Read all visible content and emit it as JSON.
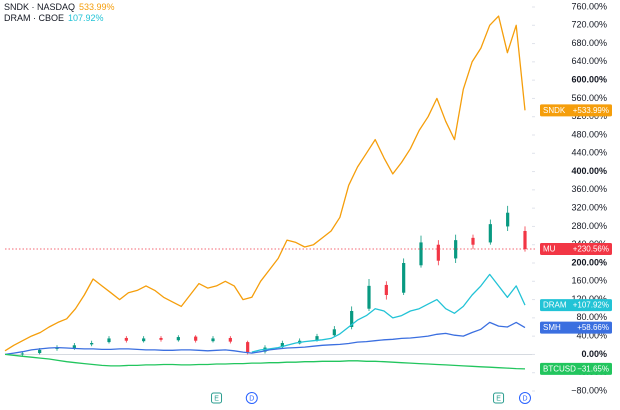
{
  "chart_data": {
    "type": "line",
    "legend": [
      {
        "name": "SNDK · NASDAQ",
        "change": "533.99%",
        "color": "#f59e0b"
      },
      {
        "name": "DRAM · CBOE",
        "change": "107.92%",
        "color": "#22c3d6"
      }
    ],
    "ylim": [
      -80,
      760
    ],
    "yticks": [
      {
        "value": -80,
        "label": "−80.00%"
      },
      {
        "value": -40,
        "label": "−40.00%"
      },
      {
        "value": 0,
        "label": "0.00%"
      },
      {
        "value": 40,
        "label": "40.00%"
      },
      {
        "value": 80,
        "label": "80.00%"
      },
      {
        "value": 120,
        "label": "120.00%"
      },
      {
        "value": 160,
        "label": "160.00%"
      },
      {
        "value": 200,
        "label": "200.00%"
      },
      {
        "value": 240,
        "label": "240.00%"
      },
      {
        "value": 280,
        "label": "280.00%"
      },
      {
        "value": 320,
        "label": "320.00%"
      },
      {
        "value": 360,
        "label": "360.00%"
      },
      {
        "value": 400,
        "label": "400.00%"
      },
      {
        "value": 440,
        "label": "440.00%"
      },
      {
        "value": 480,
        "label": "480.00%"
      },
      {
        "value": 520,
        "label": "520.00%"
      },
      {
        "value": 560,
        "label": "560.00%"
      },
      {
        "value": 600,
        "label": "600.00%"
      },
      {
        "value": 640,
        "label": "640.00%"
      },
      {
        "value": 680,
        "label": "680.00%"
      },
      {
        "value": 720,
        "label": "720.00%"
      },
      {
        "value": 760,
        "label": "760.00%"
      }
    ],
    "series": [
      {
        "name": "SNDK",
        "type": "line",
        "color": "#f59e0b",
        "last_label": "+533.99%",
        "values": [
          8,
          20,
          30,
          40,
          48,
          60,
          70,
          78,
          100,
          130,
          165,
          150,
          135,
          120,
          135,
          140,
          150,
          140,
          125,
          115,
          105,
          130,
          155,
          145,
          150,
          160,
          150,
          120,
          125,
          160,
          185,
          210,
          250,
          245,
          235,
          240,
          255,
          270,
          300,
          370,
          410,
          440,
          470,
          430,
          395,
          420,
          450,
          490,
          520,
          560,
          510,
          470,
          580,
          640,
          670,
          720,
          740,
          660,
          720,
          533.99
        ]
      },
      {
        "name": "MU",
        "type": "candlestick",
        "up_color": "#089981",
        "down_color": "#f23645",
        "color": "#f23645",
        "last_label": "+230.56%",
        "open": [
          0,
          3,
          12,
          14,
          22,
          27,
          36,
          29,
          36,
          31,
          39,
          29,
          36,
          27,
          6,
          16,
          24,
          31,
          42,
          60,
          100,
          152,
          135,
          195,
          240,
          210,
          255,
          245,
          280,
          270
        ],
        "high": [
          6,
          14,
          20,
          25,
          30,
          40,
          40,
          40,
          40,
          42,
          42,
          40,
          40,
          30,
          20,
          30,
          35,
          45,
          62,
          105,
          165,
          160,
          210,
          260,
          250,
          262,
          262,
          295,
          325,
          280
        ],
        "low": [
          -4,
          0,
          8,
          10,
          18,
          24,
          26,
          26,
          28,
          28,
          26,
          26,
          24,
          0,
          2,
          12,
          22,
          28,
          38,
          55,
          95,
          120,
          130,
          190,
          195,
          200,
          230,
          240,
          270,
          225
        ],
        "close": [
          2,
          10,
          15,
          20,
          25,
          35,
          30,
          35,
          32,
          38,
          30,
          35,
          28,
          5,
          15,
          25,
          30,
          40,
          55,
          95,
          150,
          130,
          200,
          245,
          205,
          250,
          240,
          285,
          310,
          230.56
        ]
      },
      {
        "name": "DRAM",
        "type": "line",
        "color": "#22c3d6",
        "last_label": "+107.92%",
        "values": [
          null,
          null,
          null,
          null,
          null,
          null,
          null,
          null,
          null,
          null,
          null,
          null,
          null,
          null,
          null,
          null,
          null,
          null,
          null,
          null,
          null,
          null,
          null,
          null,
          null,
          null,
          null,
          null,
          5,
          10,
          12,
          15,
          20,
          25,
          28,
          30,
          32,
          35,
          45,
          60,
          75,
          85,
          100,
          95,
          80,
          85,
          95,
          100,
          110,
          120,
          100,
          90,
          105,
          130,
          150,
          175,
          150,
          125,
          150,
          107.92
        ]
      },
      {
        "name": "SMH",
        "type": "line",
        "color": "#3b6fe0",
        "last_label": "+58.66%",
        "values": [
          0,
          3,
          6,
          10,
          12,
          14,
          15,
          14,
          13,
          12,
          12,
          11,
          11,
          12,
          12,
          11,
          10,
          10,
          9,
          9,
          10,
          10,
          9,
          8,
          9,
          10,
          8,
          5,
          3,
          6,
          10,
          12,
          14,
          15,
          16,
          18,
          20,
          21,
          22,
          24,
          27,
          28,
          30,
          32,
          33,
          35,
          36,
          38,
          40,
          44,
          46,
          42,
          40,
          48,
          55,
          70,
          62,
          60,
          70,
          58.66
        ]
      },
      {
        "name": "BTCUSD",
        "type": "line",
        "color": "#22c55e",
        "last_label": "−31.65%",
        "values": [
          0,
          -2,
          -4,
          -6,
          -8,
          -10,
          -13,
          -16,
          -18,
          -20,
          -22,
          -24,
          -25,
          -25,
          -24,
          -24,
          -23,
          -23,
          -22,
          -22,
          -23,
          -23,
          -22,
          -22,
          -21,
          -21,
          -20,
          -20,
          -19,
          -19,
          -18,
          -18,
          -17,
          -17,
          -16,
          -16,
          -15,
          -15,
          -15,
          -14,
          -14,
          -15,
          -15,
          -16,
          -17,
          -18,
          -19,
          -20,
          -21,
          -22,
          -23,
          -24,
          -25,
          -26,
          -27,
          -28,
          -29,
          -30,
          -31,
          -31.65
        ]
      }
    ],
    "events": [
      {
        "label": "E",
        "index": 24
      },
      {
        "label": "D",
        "index": 28
      },
      {
        "label": "E",
        "index": 56
      },
      {
        "label": "D",
        "index": 59
      }
    ]
  }
}
